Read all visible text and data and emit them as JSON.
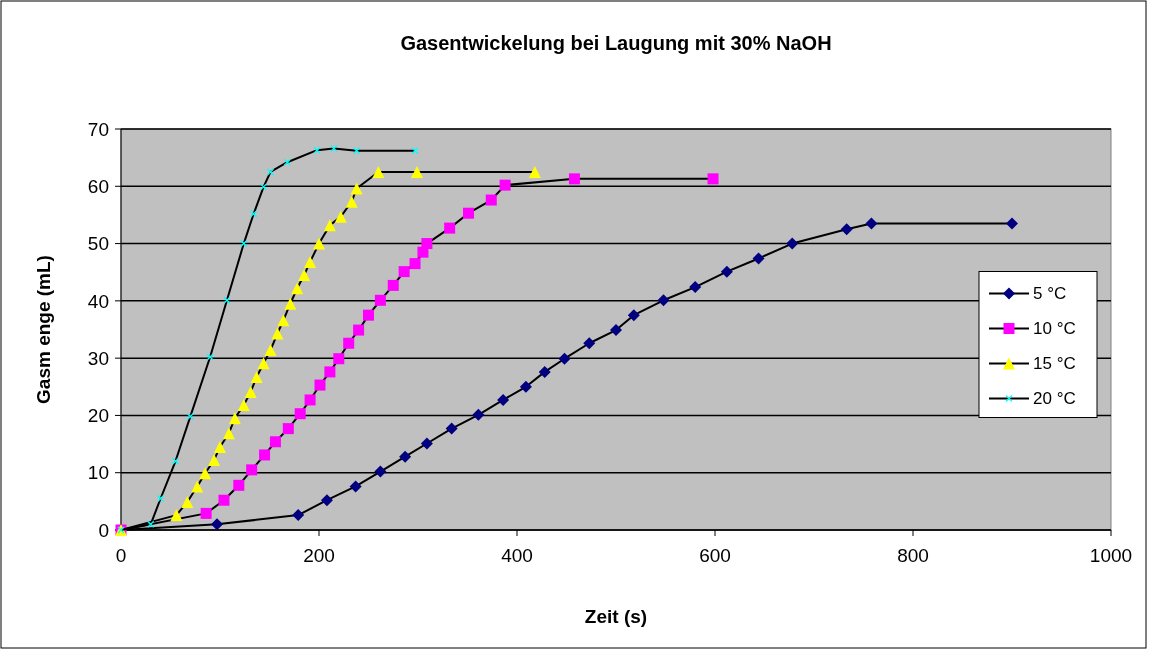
{
  "chart_data": {
    "type": "line",
    "title": "Gasentwickelung bei Laugung mit 30% NaOH",
    "xlabel": "Zeit (s)",
    "ylabel": "Gasm enge (mL)",
    "xlim": [
      0,
      1000
    ],
    "xticks": [
      0,
      200,
      400,
      600,
      800,
      1000
    ],
    "ylim": [
      0,
      70
    ],
    "yticks": [
      0,
      10,
      20,
      30,
      40,
      50,
      60,
      70
    ],
    "grid": "y",
    "legend": "right",
    "series": [
      {
        "name": "5 °C",
        "color": "#000080",
        "marker": "diamond",
        "x": [
          0,
          97,
          179,
          208,
          237,
          262,
          287,
          309,
          334,
          361,
          386,
          409,
          428,
          448,
          473,
          500,
          518,
          548,
          580,
          612,
          644,
          678,
          733,
          758,
          900
        ],
        "values": [
          0,
          1,
          2.6,
          5.2,
          7.6,
          10.2,
          12.8,
          15.1,
          17.7,
          20.1,
          22.7,
          25,
          27.6,
          29.9,
          32.6,
          34.9,
          37.5,
          40.1,
          42.4,
          45.1,
          47.4,
          50,
          52.5,
          53.5,
          53.5
        ]
      },
      {
        "name": "10 °C",
        "color": "#ff00ff",
        "marker": "square",
        "x": [
          0,
          86,
          104,
          119,
          132,
          145,
          156,
          169,
          181,
          191,
          201,
          211,
          220,
          230,
          240,
          250,
          262,
          275,
          286,
          297,
          305,
          309,
          332,
          351,
          374,
          388,
          458,
          598
        ],
        "values": [
          0,
          2.9,
          5.2,
          7.8,
          10.5,
          13.1,
          15.4,
          17.7,
          20.3,
          22.7,
          25.3,
          27.6,
          29.9,
          32.6,
          34.9,
          37.5,
          40.1,
          42.7,
          45.1,
          46.5,
          48.5,
          50,
          52.7,
          55.3,
          57.6,
          60.2,
          61.3,
          61.3
        ]
      },
      {
        "name": "15 °C",
        "color": "#ffff00",
        "marker": "triangle",
        "x": [
          0,
          56,
          67,
          77,
          85,
          94,
          100,
          109,
          115,
          124,
          131,
          137,
          144,
          151,
          158,
          164,
          171,
          178,
          185,
          191,
          200,
          211,
          222,
          233,
          238,
          260,
          299,
          418
        ],
        "values": [
          0,
          2.6,
          4.9,
          7.6,
          9.9,
          12.2,
          14.5,
          16.9,
          19.5,
          21.8,
          24.1,
          26.7,
          29.1,
          31.4,
          34.3,
          36.6,
          39.5,
          42.2,
          44.5,
          46.8,
          50,
          53.2,
          54.7,
          57.3,
          59.6,
          62.5,
          62.5,
          62.5
        ]
      },
      {
        "name": "20 °C",
        "color": "#00ffff",
        "marker": "cross",
        "x": [
          0,
          30,
          40,
          55,
          70,
          90,
          107,
          124,
          134,
          144,
          151,
          168,
          198,
          215,
          238,
          297
        ],
        "values": [
          0,
          1,
          5.5,
          12,
          19.8,
          30.2,
          40.1,
          50,
          55.2,
          59.9,
          62.5,
          64.2,
          66.3,
          66.6,
          66.2,
          66.2
        ]
      }
    ]
  }
}
